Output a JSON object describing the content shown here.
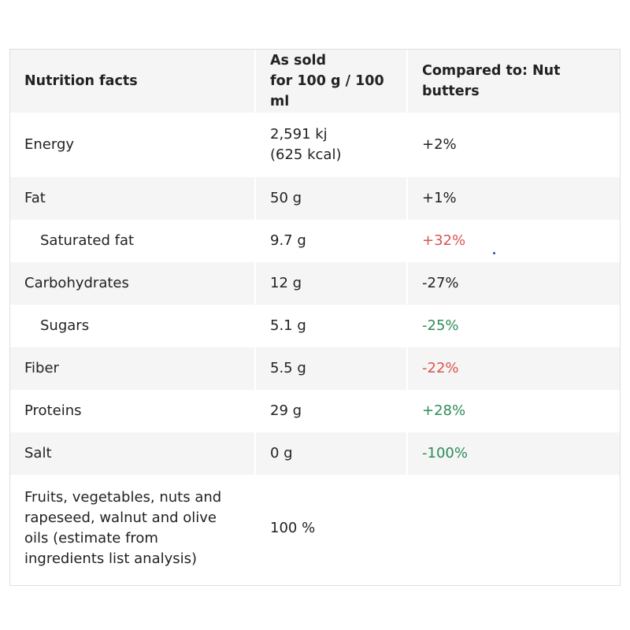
{
  "header": {
    "col1": "Nutrition facts",
    "col2_line1": "As sold",
    "col2_line2": "for 100 g / 100 ml",
    "col3": "Compared to: Nut butters"
  },
  "rows": [
    {
      "name": "Energy",
      "value_line1": "2,591 kj",
      "value_line2": "(625 kcal)",
      "compare": "+2%",
      "compare_status": "neutral"
    },
    {
      "name": "Fat",
      "value": "50 g",
      "compare": "+1%",
      "compare_status": "neutral"
    },
    {
      "name": "Saturated fat",
      "value": "9.7 g",
      "compare": "+32%",
      "compare_status": "bad"
    },
    {
      "name": "Carbohydrates",
      "value": "12 g",
      "compare": "-27%",
      "compare_status": "neutral"
    },
    {
      "name": "Sugars",
      "value": "5.1 g",
      "compare": "-25%",
      "compare_status": "good"
    },
    {
      "name": "Fiber",
      "value": "5.5 g",
      "compare": "-22%",
      "compare_status": "bad"
    },
    {
      "name": "Proteins",
      "value": "29 g",
      "compare": "+28%",
      "compare_status": "good"
    },
    {
      "name": "Salt",
      "value": "0 g",
      "compare": "-100%",
      "compare_status": "good"
    },
    {
      "name_lines": [
        "Fruits, vegetables, nuts and",
        "rapeseed, walnut and olive",
        "oils (estimate from",
        "ingredients list analysis)"
      ],
      "value": "100 %",
      "compare": ""
    }
  ],
  "colors": {
    "bad": "#d9534f",
    "good": "#2e8b57",
    "neutral": "#222222",
    "stripe": "#f5f5f5"
  }
}
